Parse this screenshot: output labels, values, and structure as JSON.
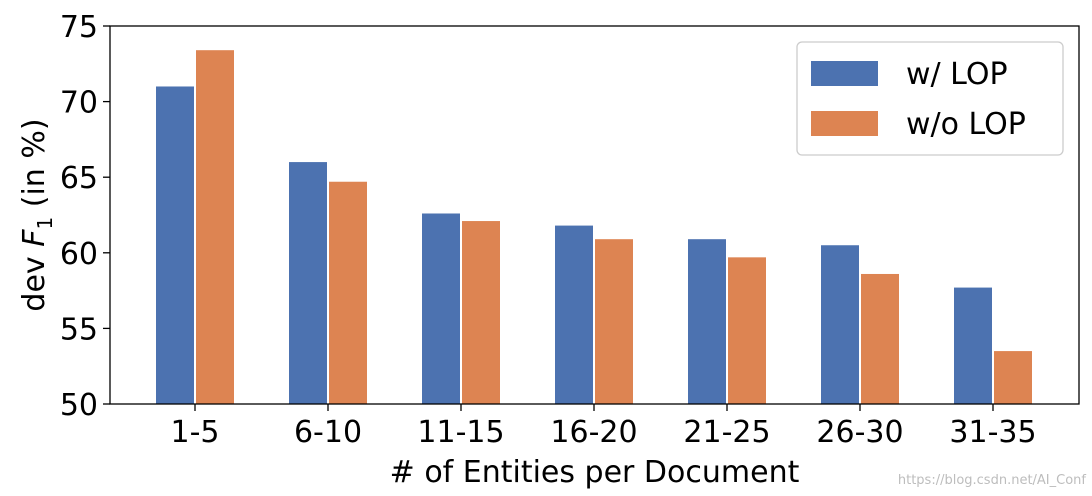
{
  "chart_data": {
    "type": "bar",
    "categories": [
      "1-5",
      "6-10",
      "11-15",
      "16-20",
      "21-25",
      "26-30",
      "31-35"
    ],
    "series": [
      {
        "name": "w/ LOP",
        "color": "#4c72b0",
        "values": [
          71.0,
          66.0,
          62.6,
          61.8,
          60.9,
          60.5,
          57.7
        ]
      },
      {
        "name": "w/o LOP",
        "color": "#dd8452",
        "values": [
          73.4,
          64.7,
          62.1,
          60.9,
          59.7,
          58.6,
          53.5
        ]
      }
    ],
    "xlabel": "# of Entities per Document",
    "ylabel_prefix": "dev ",
    "ylabel_var": "F",
    "ylabel_sub": "1",
    "ylabel_suffix": " (in %)",
    "ylim": [
      50,
      75
    ],
    "yticks": [
      50,
      55,
      60,
      65,
      70,
      75
    ],
    "legend_position": "top-right",
    "grid": false
  },
  "watermark": "https://blog.csdn.net/AI_Conf"
}
